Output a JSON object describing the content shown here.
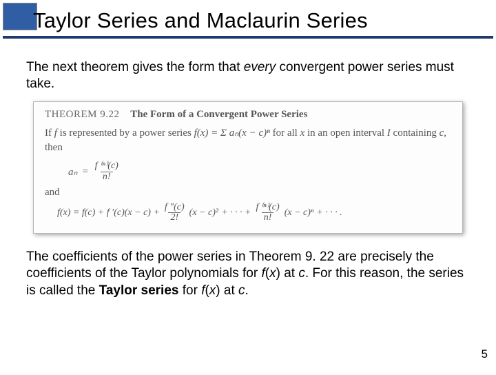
{
  "title": "Taylor Series and Maclaurin Series",
  "intro": {
    "part1": "The next theorem gives the form that ",
    "every": "every",
    "part2": " convergent power series must take."
  },
  "theorem": {
    "label": "THEOREM 9.22",
    "title": "The Form of a Convergent Power Series",
    "body1a": "If ",
    "body1_f": "f",
    "body1b": " is represented by a power series ",
    "body1_fx": "f(x) = Σ aₙ(x − c)ⁿ",
    "body1c": " for all ",
    "body1_x": "x",
    "body1d": " in an open interval ",
    "body1_I": "I",
    "body1e": " containing ",
    "body1_c2": "c",
    "body1f": ", then",
    "coef_lhs": "aₙ",
    "coef_eq": " = ",
    "coef_num": "f ⁽ⁿ⁾(c)",
    "coef_den": "n!",
    "and": "and",
    "series_lhs": "f(x) = f(c) + f ′(c)(x − c) + ",
    "term2_num": "f ″(c)",
    "term2_den": "2!",
    "term2_tail": "(x − c)²",
    "dots1": " + · · · + ",
    "termn_num": "f ⁽ⁿ⁾(c)",
    "termn_den": "n!",
    "termn_tail": "(x − c)ⁿ",
    "dots2": " + · · · ."
  },
  "outro": {
    "line1a": "The coefficients of the power series in Theorem 9. 22 are precisely the coefficients of the Taylor polynomials for ",
    "fx1": "f",
    "paren1": "(",
    "x1": "x",
    "paren2": ")",
    "line1b": " at ",
    "c1": "c",
    "line1c": ". For this reason, the series is called the ",
    "taylor": "Taylor series",
    "line2a": " for ",
    "fx2": "f",
    "paren3": "(",
    "x2": "x",
    "paren4": ")",
    "line2b": " at ",
    "c2": "c",
    "line2c": "."
  },
  "page_number": "5",
  "colors": {
    "title_box": "#2f5ea5",
    "title_rule": "#1d3a6e",
    "theorem_border": "#b8b8b8",
    "theorem_text": "#555558"
  }
}
